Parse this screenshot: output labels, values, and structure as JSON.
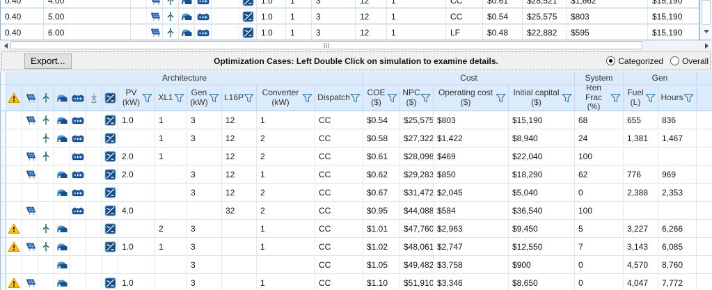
{
  "toolbar": {
    "export_label": "Export...",
    "message": "Optimization Cases: Left Double Click on simulation to examine details.",
    "options": [
      {
        "label": "Categorized",
        "selected": true
      },
      {
        "label": "Overall",
        "selected": false
      }
    ]
  },
  "top_table": {
    "rows": [
      {
        "clipped": true,
        "s1": "0.40",
        "s2": "4.00",
        "icons": [
          "pv",
          "wind",
          "gen",
          "batt",
          "conv"
        ],
        "pv_kw": "1.0",
        "xl1": "1",
        "gen_kw": "3",
        "l16p": "12",
        "conv_kw": "1",
        "dispatch": "CC",
        "coe": "$0.61",
        "npc": "$28,521",
        "op_cost": "$1,662",
        "init_cap": "$15,190"
      },
      {
        "clipped": false,
        "s1": "0.40",
        "s2": "5.00",
        "icons": [
          "pv",
          "wind",
          "gen",
          "batt",
          "conv"
        ],
        "pv_kw": "1.0",
        "xl1": "1",
        "gen_kw": "3",
        "l16p": "12",
        "conv_kw": "1",
        "dispatch": "CC",
        "coe": "$0.54",
        "npc": "$25,575",
        "op_cost": "$803",
        "init_cap": "$15,190"
      },
      {
        "clipped": false,
        "s1": "0.40",
        "s2": "6.00",
        "icons": [
          "pv",
          "wind",
          "gen",
          "batt",
          "conv"
        ],
        "pv_kw": "1.0",
        "xl1": "1",
        "gen_kw": "3",
        "l16p": "12",
        "conv_kw": "1",
        "dispatch": "LF",
        "coe": "$0.48",
        "npc": "$22,882",
        "op_cost": "$595",
        "init_cap": "$15,190"
      }
    ]
  },
  "results_table": {
    "groups": {
      "architecture": "Architecture",
      "cost": "Cost",
      "system": "System",
      "gen": "Gen"
    },
    "headers": {
      "pv_kw": "PV\n(kW)",
      "xl1": "XL1",
      "gen_kw": "Gen\n(kW)",
      "l16p": "L16P",
      "conv_kw": "Converter\n(kW)",
      "dispatch": "Dispatch",
      "coe": "COE\n($)",
      "npc": "NPC\n($)",
      "op_cost": "Operating cost\n($)",
      "init_cap": "Initial capital\n($)",
      "ren_frac": "Ren Frac\n(%)",
      "fuel": "Fuel\n(L)",
      "hours": "Hours"
    },
    "rows": [
      {
        "icons": [
          "pv",
          "wind",
          "gen",
          "batt",
          "conv"
        ],
        "pv_kw": "1.0",
        "xl1": "1",
        "gen_kw": "3",
        "l16p": "12",
        "conv_kw": "1",
        "dispatch": "CC",
        "coe": "$0.54",
        "npc": "$25,575",
        "op_cost": "$803",
        "init_cap": "$15,190",
        "ren_frac": "68",
        "fuel": "655",
        "hours": "836"
      },
      {
        "icons": [
          "wind",
          "gen",
          "batt",
          "conv"
        ],
        "pv_kw": "",
        "xl1": "1",
        "gen_kw": "3",
        "l16p": "12",
        "conv_kw": "2",
        "dispatch": "CC",
        "coe": "$0.58",
        "npc": "$27,322",
        "op_cost": "$1,422",
        "init_cap": "$8,940",
        "ren_frac": "24",
        "fuel": "1,381",
        "hours": "1,467"
      },
      {
        "icons": [
          "pv",
          "wind",
          "batt",
          "conv"
        ],
        "pv_kw": "2.0",
        "xl1": "1",
        "gen_kw": "",
        "l16p": "12",
        "conv_kw": "2",
        "dispatch": "CC",
        "coe": "$0.61",
        "npc": "$28,098",
        "op_cost": "$469",
        "init_cap": "$22,040",
        "ren_frac": "100",
        "fuel": "",
        "hours": ""
      },
      {
        "icons": [
          "pv",
          "gen",
          "batt",
          "conv"
        ],
        "pv_kw": "2.0",
        "xl1": "",
        "gen_kw": "3",
        "l16p": "12",
        "conv_kw": "1",
        "dispatch": "CC",
        "coe": "$0.62",
        "npc": "$29,283",
        "op_cost": "$850",
        "init_cap": "$18,290",
        "ren_frac": "62",
        "fuel": "776",
        "hours": "969"
      },
      {
        "icons": [
          "gen",
          "batt",
          "conv"
        ],
        "pv_kw": "",
        "xl1": "",
        "gen_kw": "3",
        "l16p": "12",
        "conv_kw": "2",
        "dispatch": "CC",
        "coe": "$0.67",
        "npc": "$31,472",
        "op_cost": "$2,045",
        "init_cap": "$5,040",
        "ren_frac": "0",
        "fuel": "2,388",
        "hours": "2,353"
      },
      {
        "icons": [
          "pv",
          "batt",
          "conv"
        ],
        "pv_kw": "4.0",
        "xl1": "",
        "gen_kw": "",
        "l16p": "32",
        "conv_kw": "2",
        "dispatch": "CC",
        "coe": "$0.95",
        "npc": "$44,088",
        "op_cost": "$584",
        "init_cap": "$36,540",
        "ren_frac": "100",
        "fuel": "",
        "hours": ""
      },
      {
        "icons": [
          "warn",
          "wind",
          "gen",
          "conv"
        ],
        "pv_kw": "",
        "xl1": "2",
        "gen_kw": "3",
        "l16p": "",
        "conv_kw": "1",
        "dispatch": "CC",
        "coe": "$1.01",
        "npc": "$47,760",
        "op_cost": "$2,963",
        "init_cap": "$9,450",
        "ren_frac": "5",
        "fuel": "3,227",
        "hours": "6,266"
      },
      {
        "icons": [
          "warn",
          "pv",
          "wind",
          "gen",
          "conv"
        ],
        "pv_kw": "1.0",
        "xl1": "1",
        "gen_kw": "3",
        "l16p": "",
        "conv_kw": "1",
        "dispatch": "CC",
        "coe": "$1.02",
        "npc": "$48,061",
        "op_cost": "$2,747",
        "init_cap": "$12,550",
        "ren_frac": "7",
        "fuel": "3,143",
        "hours": "6,085"
      },
      {
        "icons": [
          "gen"
        ],
        "pv_kw": "",
        "xl1": "",
        "gen_kw": "3",
        "l16p": "",
        "conv_kw": "",
        "dispatch": "CC",
        "coe": "$1.05",
        "npc": "$49,482",
        "op_cost": "$3,758",
        "init_cap": "$900",
        "ren_frac": "0",
        "fuel": "4,570",
        "hours": "8,760"
      },
      {
        "icons": [
          "warn",
          "pv",
          "gen",
          "conv"
        ],
        "pv_kw": "1.0",
        "xl1": "",
        "gen_kw": "3",
        "l16p": "",
        "conv_kw": "1",
        "dispatch": "CC",
        "coe": "$1.10",
        "npc": "$51,910",
        "op_cost": "$3,346",
        "init_cap": "$8,650",
        "ren_frac": "0",
        "fuel": "4,047",
        "hours": "7,772"
      }
    ]
  }
}
